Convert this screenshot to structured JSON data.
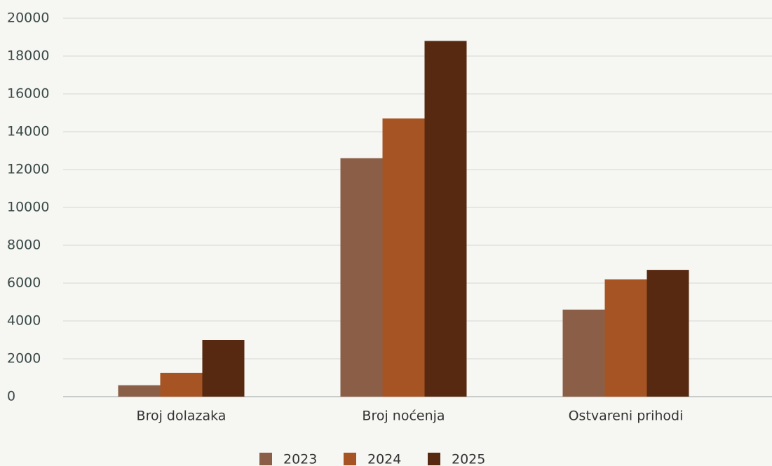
{
  "chart_data": {
    "type": "bar",
    "categories": [
      "Broj dolazaka",
      "Broj noćenja",
      "Ostvareni prihodi"
    ],
    "series": [
      {
        "name": "2023",
        "color": "#8b5f47",
        "values": [
          600,
          12600,
          4600
        ]
      },
      {
        "name": "2024",
        "color": "#a65424",
        "values": [
          1260,
          14700,
          6200
        ]
      },
      {
        "name": "2025",
        "color": "#572910",
        "values": [
          3000,
          18800,
          6700
        ]
      }
    ],
    "ylim": [
      0,
      20000
    ],
    "yticks": [
      0,
      2000,
      4000,
      6000,
      8000,
      10000,
      12000,
      14000,
      16000,
      18000,
      20000
    ],
    "grid": true
  }
}
